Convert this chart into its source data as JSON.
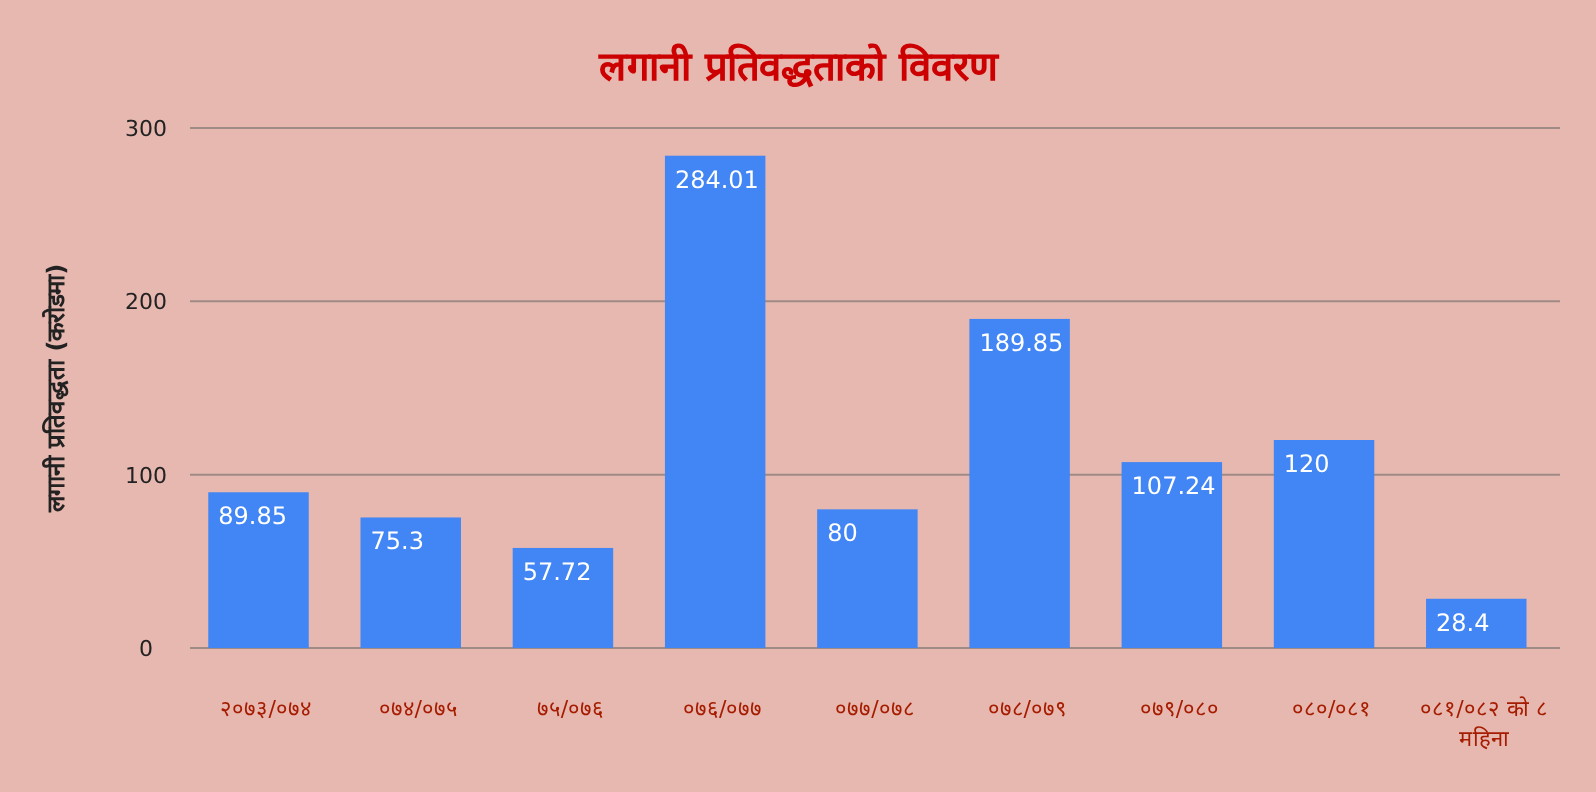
{
  "chart_data": {
    "type": "bar",
    "title": "लगानी प्रतिवद्धताको विवरण",
    "ylabel": "लगानी प्रतिवद्धता (करोडमा)",
    "categories": [
      "२०७३/०७४",
      "०७४/०७५",
      "७५/०७६",
      "०७६/०७७",
      "०७७/०७८",
      "०७८/०७९",
      "०७९/०८०",
      "०८०/०८१",
      "०८१/०८२ को ८ महिना"
    ],
    "values": [
      89.85,
      75.3,
      57.72,
      284.01,
      80,
      189.85,
      107.24,
      120,
      28.4
    ],
    "color": "#4285f4",
    "ylim": [
      0,
      300
    ],
    "yticks": [
      0,
      100,
      200,
      300
    ],
    "grid": "y",
    "data_labels": true
  }
}
